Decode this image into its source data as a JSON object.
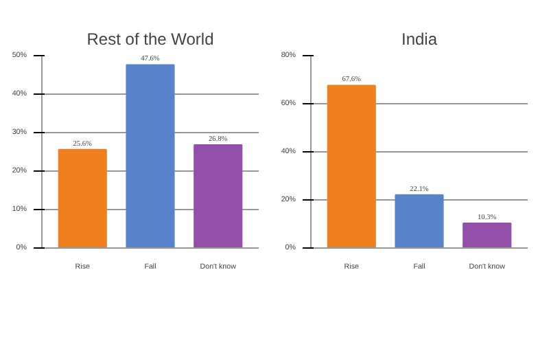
{
  "chart_data": [
    {
      "type": "bar",
      "title": "Rest of the World",
      "categories": [
        "Rise",
        "Fall",
        "Don't know"
      ],
      "values": [
        25.6,
        47.6,
        26.8
      ],
      "value_labels": [
        "25.6%",
        "47.6%",
        "26.8%"
      ],
      "colors": [
        "#f07f1e",
        "#5683c9",
        "#9250a8"
      ],
      "ylim": [
        0,
        50
      ],
      "yticks": [
        {
          "value": 0,
          "label": "0%"
        },
        {
          "value": 10,
          "label": "10%"
        },
        {
          "value": 20,
          "label": "20%"
        },
        {
          "value": 30,
          "label": "30%"
        },
        {
          "value": 40,
          "label": "40%"
        },
        {
          "value": 50,
          "label": "50%"
        }
      ],
      "grid": "y"
    },
    {
      "type": "bar",
      "title": "India",
      "categories": [
        "Rise",
        "Fall",
        "Don't know"
      ],
      "values": [
        67.6,
        22.1,
        10.3
      ],
      "value_labels": [
        "67.6%",
        "22.1%",
        "10.3%"
      ],
      "colors": [
        "#f07f1e",
        "#5683c9",
        "#9250a8"
      ],
      "ylim": [
        0,
        80
      ],
      "yticks": [
        {
          "value": 0,
          "label": "0%"
        },
        {
          "value": 20,
          "label": "20%"
        },
        {
          "value": 40,
          "label": "40%"
        },
        {
          "value": 60,
          "label": "60%"
        },
        {
          "value": 80,
          "label": "80%"
        }
      ],
      "grid": "y"
    }
  ]
}
